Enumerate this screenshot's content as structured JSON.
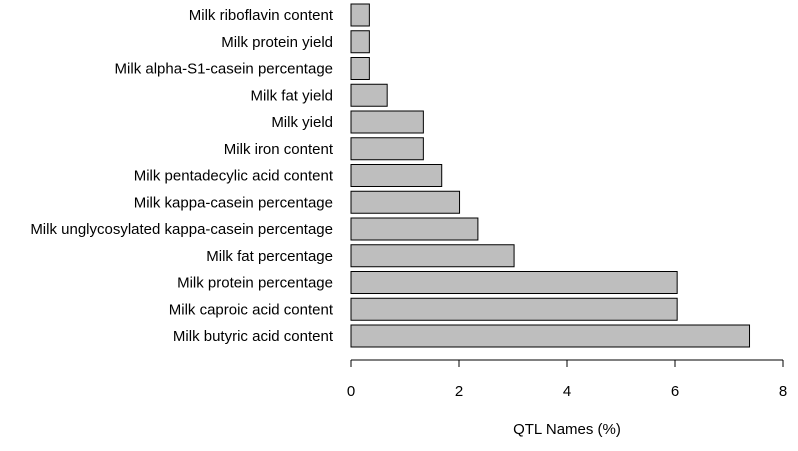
{
  "chart_data": {
    "type": "bar",
    "orientation": "horizontal",
    "categories": [
      "Milk riboflavin content",
      "Milk protein yield",
      "Milk alpha-S1-casein percentage",
      "Milk fat yield",
      "Milk yield",
      "Milk iron content",
      "Milk pentadecylic acid content",
      "Milk kappa-casein percentage",
      "Milk unglycosylated kappa-casein percentage",
      "Milk fat percentage",
      "Milk protein percentage",
      "Milk caproic acid content",
      "Milk butyric acid content"
    ],
    "values": [
      0.34,
      0.34,
      0.34,
      0.67,
      1.34,
      1.34,
      1.68,
      2.01,
      2.35,
      3.02,
      6.04,
      6.04,
      7.38
    ],
    "xlabel": "QTL Names (%)",
    "ylabel": "",
    "xlim": [
      0,
      8
    ],
    "xticks": [
      0,
      2,
      4,
      6,
      8
    ],
    "grid": false,
    "bar_color": "#bebebe"
  }
}
